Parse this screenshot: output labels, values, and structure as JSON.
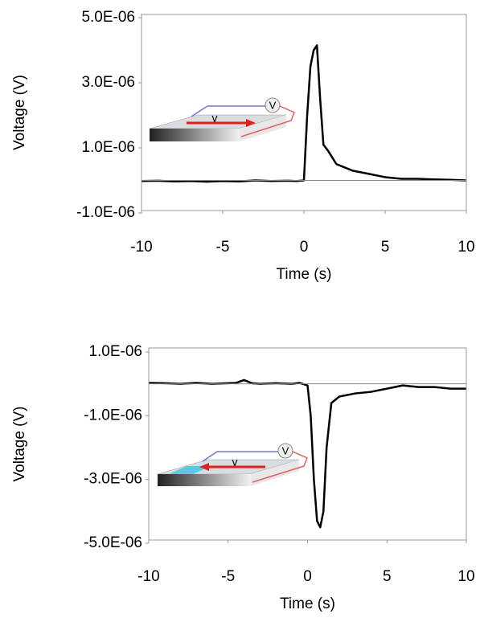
{
  "chart_data": [
    {
      "type": "line",
      "xlabel": "Time (s)",
      "ylabel": "Voltage (V)",
      "annotations": [
        "V",
        "v"
      ],
      "xlim": [
        -10,
        10
      ],
      "xticks": [
        -10,
        -5,
        0,
        5,
        10
      ],
      "ylim": [
        -1e-06,
        5e-06
      ],
      "yticks": [
        {
          "value": -1e-06,
          "label": "-1.0E-06"
        },
        {
          "value": 1e-06,
          "label": "1.0E-06"
        },
        {
          "value": 3e-06,
          "label": "3.0E-06"
        },
        {
          "value": 5e-06,
          "label": "5.0E-06"
        }
      ],
      "series": [
        {
          "color": "#000000",
          "x": [
            -10,
            -9,
            -8,
            -7,
            -6,
            -5,
            -4,
            -3,
            -2,
            -1,
            -0.5,
            0,
            0.2,
            0.4,
            0.6,
            0.8,
            1.0,
            1.2,
            1.5,
            2,
            2.5,
            3,
            4,
            5,
            6,
            7,
            8,
            9,
            10
          ],
          "values": [
            -2e-08,
            -1e-08,
            -3e-08,
            -2e-08,
            -4e-08,
            -2e-08,
            -3e-08,
            0,
            -2e-08,
            -1e-08,
            -2e-08,
            0,
            2e-06,
            3.5e-06,
            4e-06,
            4.15e-06,
            2.5e-06,
            1.1e-06,
            9e-07,
            5e-07,
            4e-07,
            3e-07,
            2e-07,
            1e-07,
            5e-08,
            5e-08,
            3e-08,
            2e-08,
            0
          ]
        }
      ]
    },
    {
      "type": "line",
      "xlabel": "Time (s)",
      "ylabel": "Voltage (V)",
      "annotations": [
        "V",
        "v"
      ],
      "xlim": [
        -10,
        10
      ],
      "xticks": [
        -10,
        -5,
        0,
        5,
        10
      ],
      "ylim": [
        -5e-06,
        1e-06
      ],
      "yticks": [
        {
          "value": -5e-06,
          "label": "-5.0E-06"
        },
        {
          "value": -3e-06,
          "label": "-3.0E-06"
        },
        {
          "value": -1e-06,
          "label": "-1.0E-06"
        },
        {
          "value": 1e-06,
          "label": "1.0E-06"
        }
      ],
      "series": [
        {
          "color": "#000000",
          "x": [
            -10,
            -9,
            -8,
            -7,
            -6,
            -5,
            -4.5,
            -4,
            -3.5,
            -3,
            -2,
            -1,
            -0.5,
            0,
            0.2,
            0.4,
            0.6,
            0.8,
            1.0,
            1.2,
            1.5,
            2,
            3,
            4,
            5,
            6,
            7,
            8,
            9,
            10
          ],
          "values": [
            3e-08,
            2e-08,
            0,
            3e-08,
            0,
            2e-08,
            3e-08,
            1.2e-07,
            2e-08,
            0,
            2e-08,
            0,
            3e-08,
            -5e-08,
            -1e-06,
            -3e-06,
            -4.3e-06,
            -4.5e-06,
            -4e-06,
            -2e-06,
            -6e-07,
            -4e-07,
            -3e-07,
            -2.5e-07,
            -1.5e-07,
            -5e-08,
            -1e-07,
            -1e-07,
            -1.5e-07,
            -1.5e-07
          ]
        }
      ]
    }
  ]
}
